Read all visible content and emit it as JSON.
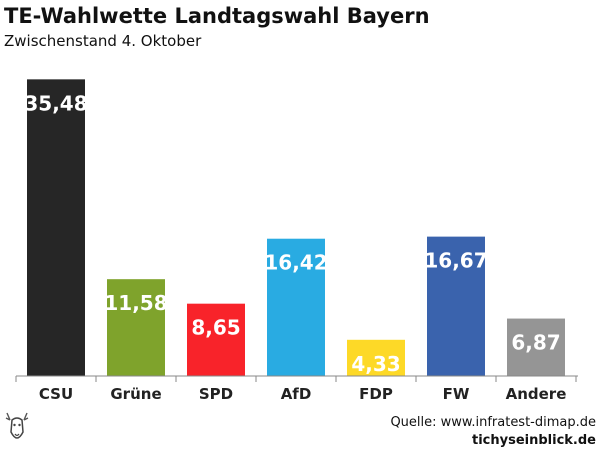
{
  "chart_data": {
    "type": "bar",
    "title": "TE-Wahlwette Landtagswahl Bayern",
    "subtitle": "Zwischenstand 4. Oktober",
    "categories": [
      "CSU",
      "Grüne",
      "SPD",
      "AfD",
      "FDP",
      "FW",
      "Andere"
    ],
    "values": [
      35.48,
      11.58,
      8.65,
      16.42,
      4.33,
      16.67,
      6.87
    ],
    "value_labels": [
      "35,48",
      "11,58",
      "8,65",
      "16,42",
      "4,33",
      "16,67",
      "6,87"
    ],
    "colors": [
      "#262626",
      "#7fa32c",
      "#f8232a",
      "#29abe2",
      "#fdd927",
      "#3a63ad",
      "#959595"
    ],
    "ylim": [
      0,
      36
    ],
    "grid": false,
    "legend": "none"
  },
  "footer": {
    "source": "Quelle: www.infratest-dimap.de",
    "brand": "tichyseinblick.de"
  },
  "icons": {
    "logo": "stag-head-logo"
  }
}
